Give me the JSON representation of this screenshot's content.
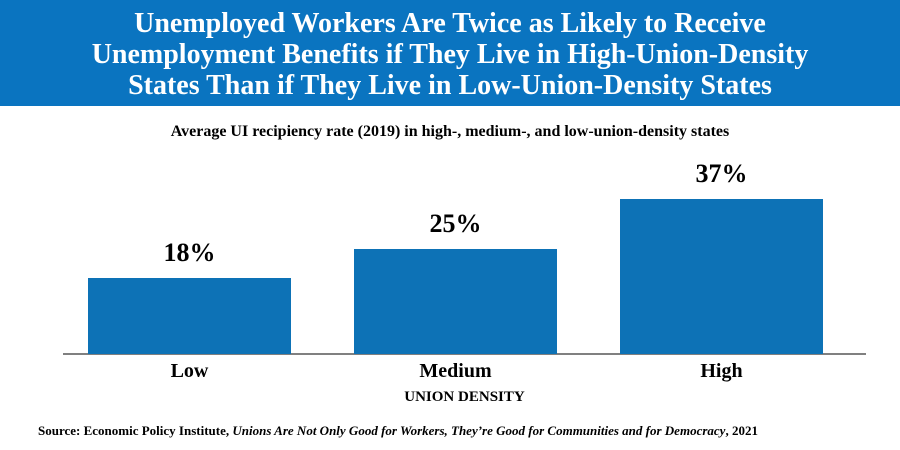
{
  "header": {
    "title_lines": [
      "Unemployed Workers Are Twice as Likely to Receive",
      "Unemployment Benefits if They Live in High-Union-Density",
      "States Than if They Live in Low-Union-Density States"
    ],
    "bg_color": "#0a74c0",
    "text_color": "#ffffff"
  },
  "subtitle": "Average UI recipiency rate (2019) in high-, medium-, and low-union-density states",
  "chart_data": {
    "type": "bar",
    "categories": [
      "Low",
      "Medium",
      "High"
    ],
    "values": [
      18,
      25,
      37
    ],
    "value_labels": [
      "18%",
      "25%",
      "37%"
    ],
    "title": "Average UI recipiency rate (2019) in high-, medium-, and low-union-density states",
    "xlabel": "UNION DENSITY",
    "ylabel": "",
    "ylim": [
      0,
      40
    ],
    "unit": "percent",
    "bar_color": "#0d72b6",
    "axis_line_color": "#808080",
    "grid": false,
    "legend": false,
    "value_labels_position": "above-bars"
  },
  "source": {
    "prefix": "Source: Economic Policy Institute, ",
    "title": "Unions Are Not Only Good for Workers, They’re Good for Communities and for Democracy",
    "suffix": ", 2021"
  }
}
